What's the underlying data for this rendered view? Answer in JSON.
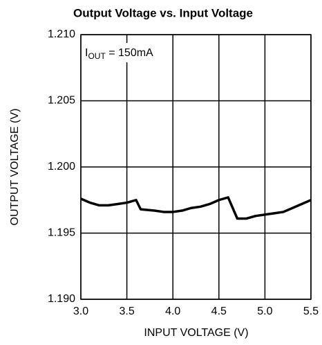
{
  "chart_data": {
    "type": "line",
    "title": "Output Voltage vs. Input Voltage",
    "xlabel": "INPUT VOLTAGE (V)",
    "ylabel": "OUTPUT VOLTAGE (V)",
    "annotation": {
      "main": "I",
      "sub": "OUT",
      "rest": " = 150mA"
    },
    "x": [
      3.0,
      3.1,
      3.2,
      3.3,
      3.4,
      3.5,
      3.6,
      3.65,
      3.8,
      3.9,
      4.0,
      4.1,
      4.2,
      4.3,
      4.4,
      4.5,
      4.6,
      4.7,
      4.8,
      4.9,
      5.0,
      5.1,
      5.2,
      5.3,
      5.4,
      5.5
    ],
    "series": [
      {
        "color": "#000000",
        "values": [
          1.1976,
          1.1973,
          1.1971,
          1.1971,
          1.1972,
          1.1973,
          1.1975,
          1.1968,
          1.1967,
          1.1966,
          1.1966,
          1.1967,
          1.1969,
          1.197,
          1.1972,
          1.1975,
          1.1977,
          1.1961,
          1.1961,
          1.1963,
          1.1964,
          1.1965,
          1.1966,
          1.1969,
          1.1972,
          1.1975
        ]
      }
    ],
    "xlim": [
      3.0,
      5.5
    ],
    "xticks": [
      {
        "value": 3.0,
        "label": "3.0"
      },
      3.5,
      {
        "value": 4.0,
        "label": "4.0"
      },
      4.5,
      {
        "value": 5.0,
        "label": "5.0"
      },
      5.5
    ],
    "ylim": [
      1.19,
      1.21
    ],
    "yticks": [
      {
        "value": 1.19,
        "label": "1.190"
      },
      {
        "value": 1.195,
        "label": "1.195"
      },
      {
        "value": 1.2,
        "label": "1.200"
      },
      {
        "value": 1.205,
        "label": "1.205"
      },
      {
        "value": 1.21,
        "label": "1.210"
      }
    ],
    "grid": true
  }
}
